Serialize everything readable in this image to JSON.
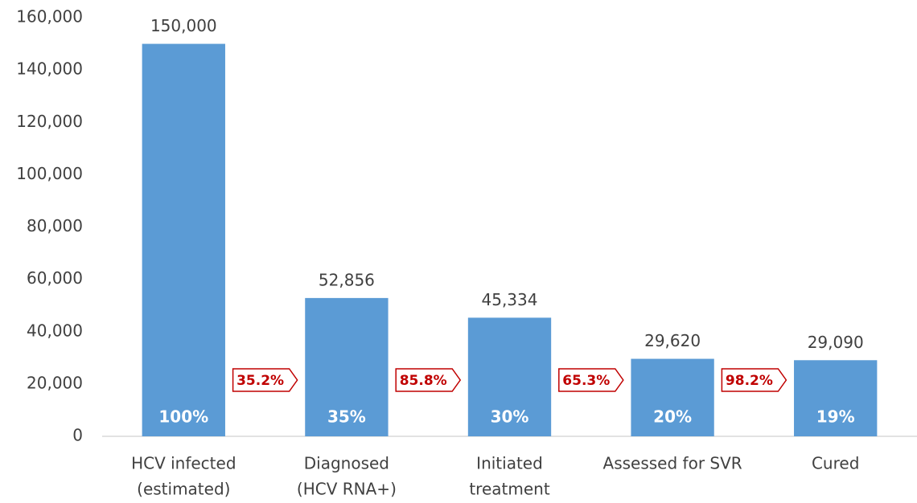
{
  "chart_data": {
    "type": "bar",
    "categories": [
      [
        "HCV infected",
        "(estimated)"
      ],
      [
        "Diagnosed",
        "(HCV RNA+)"
      ],
      [
        "Initiated",
        "treatment"
      ],
      [
        "Assessed for SVR"
      ],
      [
        "Cured"
      ]
    ],
    "values": [
      150000,
      52856,
      45334,
      29620,
      29090
    ],
    "value_labels": [
      "150,000",
      "52,856",
      "45,334",
      "29,620",
      "29,090"
    ],
    "percent_of_total": {
      "values": [
        100,
        35,
        30,
        20,
        19
      ],
      "labels": [
        "100%",
        "35%",
        "30%",
        "20%",
        "19%"
      ]
    },
    "conversion_rates": {
      "values": [
        35.2,
        85.8,
        65.3,
        98.2
      ],
      "labels": [
        "35.2%",
        "85.8%",
        "65.3%",
        "98.2%"
      ]
    },
    "color": "#5b9bd5",
    "ylim": [
      0,
      160000
    ],
    "yticks": [
      0,
      {
        "value": 20000,
        "label": "20,000"
      },
      {
        "value": 40000,
        "label": "40,000"
      },
      {
        "value": 60000,
        "label": "60,000"
      },
      {
        "value": 80000,
        "label": "80,000"
      },
      {
        "value": 100000,
        "label": "100,000"
      },
      {
        "value": 120000,
        "label": "120,000"
      },
      {
        "value": 140000,
        "label": "140,000"
      },
      {
        "value": 160000,
        "label": "160,000"
      }
    ],
    "grid": false
  }
}
